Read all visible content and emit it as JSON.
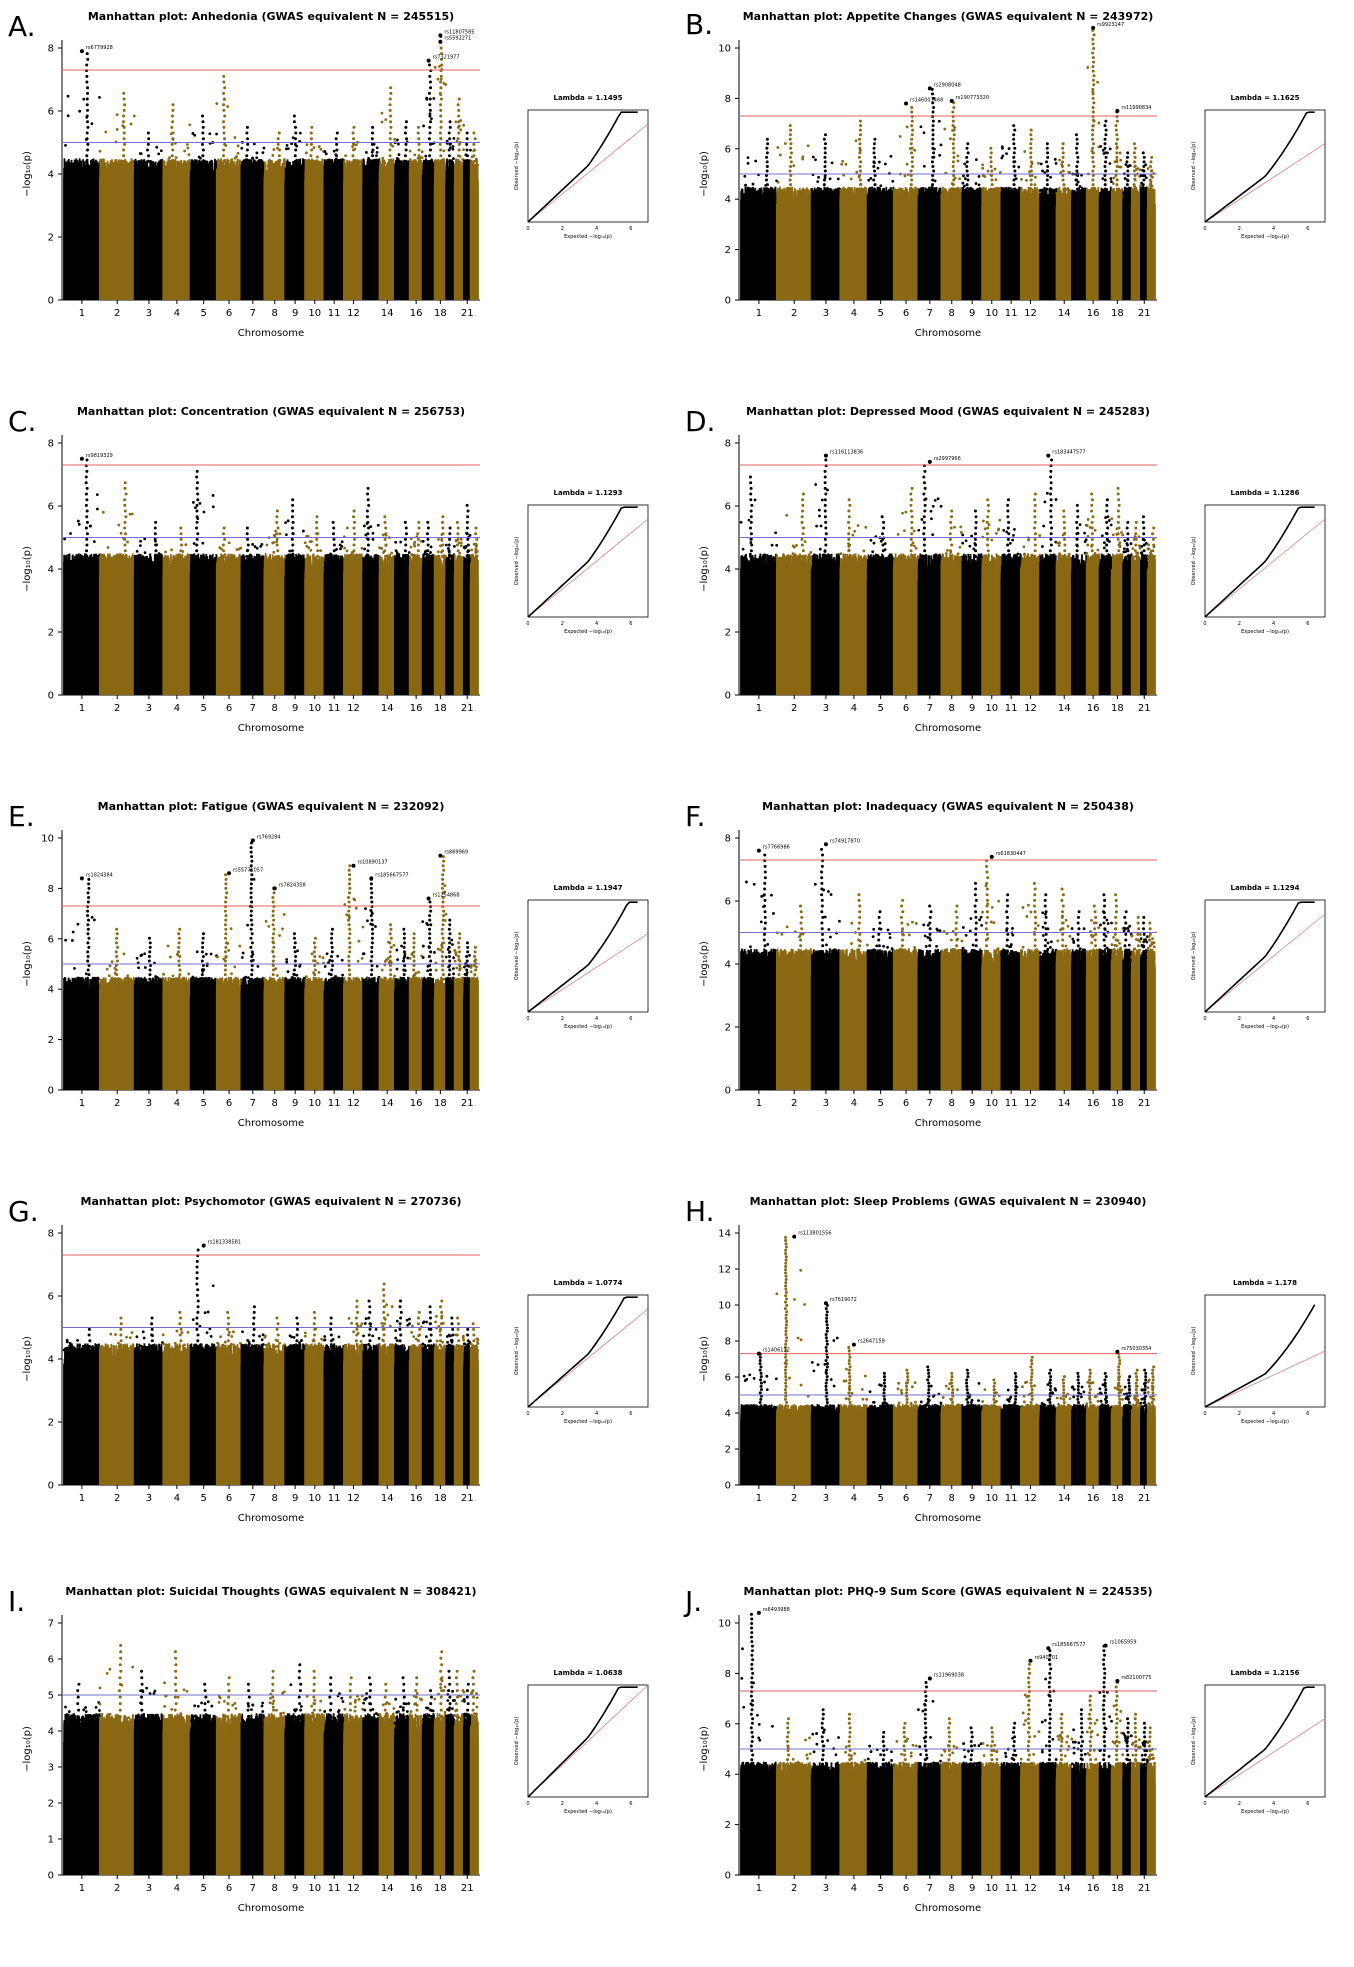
{
  "figure": {
    "panels": [
      {
        "letter": "A.",
        "title": "Manhattan plot: Anhedonia (GWAS equivalent N = 245515)",
        "lambda": "Lambda = 1.1495"
      },
      {
        "letter": "B.",
        "title": "Manhattan plot: Appetite Changes (GWAS equivalent N = 243972)",
        "lambda": "Lambda = 1.1625"
      },
      {
        "letter": "C.",
        "title": "Manhattan plot: Concentration (GWAS equivalent N = 256753)",
        "lambda": "Lambda = 1.1293"
      },
      {
        "letter": "D.",
        "title": "Manhattan plot: Depressed Mood (GWAS equivalent N = 245283)",
        "lambda": "Lambda = 1.1286"
      },
      {
        "letter": "E.",
        "title": "Manhattan plot: Fatigue (GWAS equivalent N = 232092)",
        "lambda": "Lambda = 1.1947"
      },
      {
        "letter": "F.",
        "title": "Manhattan plot: Inadequacy (GWAS equivalent N = 250438)",
        "lambda": "Lambda = 1.1294"
      },
      {
        "letter": "G.",
        "title": "Manhattan plot: Psychomotor (GWAS equivalent N = 270736)",
        "lambda": "Lambda = 1.0774"
      },
      {
        "letter": "H.",
        "title": "Manhattan plot: Sleep Problems (GWAS equivalent N = 230940)",
        "lambda": "Lambda = 1.178"
      },
      {
        "letter": "I.",
        "title": "Manhattan plot: Suicidal Thoughts (GWAS equivalent N = 308421)",
        "lambda": "Lambda = 1.0638"
      },
      {
        "letter": "J.",
        "title": "Manhattan plot: PHQ-9 Sum Score (GWAS equivalent N = 224535)",
        "lambda": "Lambda = 1.2156"
      }
    ],
    "xlabel": "Chromosome",
    "ylabel": "−log₁₀(p)",
    "qq_xlabel": "Expected  −log₁₀(p)",
    "qq_ylabel": "Observed  −log₁₀(p)",
    "chromosome_ticks": [
      "1",
      "2",
      "3",
      "4",
      "5",
      "6",
      "7",
      "8",
      "9",
      "10",
      "11",
      "12",
      "14",
      "16",
      "18",
      "21"
    ],
    "colors": {
      "odd": "#000000",
      "even": "#8B6914",
      "genomewide_line": "#e06060",
      "suggestive_line": "#7070cc",
      "null_line": "#e08080"
    }
  },
  "chart_data": [
    {
      "type": "scatter",
      "panel": "A",
      "ylim": [
        0,
        8
      ],
      "yticks": [
        0,
        2,
        4,
        6,
        8
      ],
      "genomewide": 7.3,
      "suggestive": 5,
      "chromosome_peaks": [
        7.9,
        6.6,
        5.4,
        6.3,
        5.9,
        7.2,
        5.6,
        5.4,
        5.9,
        5.5,
        5.3,
        5.6,
        5.5,
        6.9,
        5.8,
        5.5,
        7.6,
        8.4,
        5.7,
        6.5,
        5.3,
        5.3
      ],
      "annotations": [
        {
          "chr": 1,
          "y": 7.9,
          "label": "rs6779928"
        },
        {
          "chr": 18,
          "y": 8.4,
          "label": "rs11807585"
        },
        {
          "chr": 18,
          "y": 8.2,
          "label": "rs5592271"
        },
        {
          "chr": 17,
          "y": 7.6,
          "label": "rs7321977"
        }
      ],
      "qq": {
        "xmax": 7,
        "ymax": 8
      }
    },
    {
      "type": "scatter",
      "panel": "B",
      "ylim": [
        0,
        10
      ],
      "yticks": [
        0,
        2,
        4,
        6,
        8,
        10
      ],
      "genomewide": 7.3,
      "suggestive": 5,
      "chromosome_peaks": [
        6.4,
        7.0,
        6.6,
        7.2,
        6.5,
        7.8,
        8.4,
        7.9,
        6.3,
        6.1,
        7.0,
        6.8,
        6.3,
        6.2,
        6.7,
        10.8,
        7.1,
        7.5,
        6.0,
        6.2,
        6.0,
        5.8
      ],
      "annotations": [
        {
          "chr": 6,
          "y": 7.8,
          "label": "rs146007468"
        },
        {
          "chr": 7,
          "y": 8.4,
          "label": "rs2908048"
        },
        {
          "chr": 8,
          "y": 7.9,
          "label": "rs190773320"
        },
        {
          "chr": 16,
          "y": 10.8,
          "label": "rs9923147"
        },
        {
          "chr": 18,
          "y": 7.5,
          "label": "rs11990834"
        }
      ],
      "qq": {
        "xmax": 7,
        "ymax": 10
      }
    },
    {
      "type": "scatter",
      "panel": "C",
      "ylim": [
        0,
        8
      ],
      "yticks": [
        0,
        2,
        4,
        6,
        8
      ],
      "genomewide": 7.3,
      "suggestive": 5,
      "chromosome_peaks": [
        7.5,
        6.8,
        5.5,
        5.3,
        7.2,
        5.4,
        5.3,
        5.9,
        6.2,
        5.7,
        5.5,
        5.9,
        6.6,
        5.7,
        5.5,
        5.6,
        5.5,
        5.8,
        5.3,
        5.6,
        6.1,
        5.3
      ],
      "annotations": [
        {
          "chr": 1,
          "y": 7.5,
          "label": "rs9819329"
        }
      ],
      "qq": {
        "xmax": 7,
        "ymax": 8
      }
    },
    {
      "type": "scatter",
      "panel": "D",
      "ylim": [
        0,
        8
      ],
      "yticks": [
        0,
        2,
        4,
        6,
        8
      ],
      "genomewide": 7.3,
      "suggestive": 5,
      "chromosome_peaks": [
        7.0,
        6.4,
        7.6,
        6.2,
        5.7,
        6.6,
        7.4,
        6.0,
        5.9,
        6.2,
        6.2,
        6.5,
        7.6,
        6.0,
        6.1,
        6.5,
        6.3,
        6.6,
        5.6,
        5.6,
        5.7,
        5.3
      ],
      "annotations": [
        {
          "chr": 3,
          "y": 7.6,
          "label": "rs116113836"
        },
        {
          "chr": 7,
          "y": 7.4,
          "label": "rs2997966"
        },
        {
          "chr": 13,
          "y": 7.6,
          "label": "rs183447577"
        }
      ],
      "qq": {
        "xmax": 7,
        "ymax": 8
      }
    },
    {
      "type": "scatter",
      "panel": "E",
      "ylim": [
        0,
        10
      ],
      "yticks": [
        0,
        2,
        4,
        6,
        8,
        10
      ],
      "genomewide": 7.3,
      "suggestive": 5,
      "chromosome_peaks": [
        8.4,
        6.4,
        6.1,
        6.5,
        6.3,
        8.6,
        9.9,
        8.0,
        6.2,
        6.1,
        6.5,
        8.9,
        8.4,
        6.6,
        6.4,
        6.3,
        7.6,
        9.3,
        6.9,
        6.2,
        6.0,
        5.8
      ],
      "annotations": [
        {
          "chr": 1,
          "y": 8.4,
          "label": "rs1824384"
        },
        {
          "chr": 6,
          "y": 8.6,
          "label": "rs55771057"
        },
        {
          "chr": 7,
          "y": 9.9,
          "label": "rs769284"
        },
        {
          "chr": 8,
          "y": 8.0,
          "label": "rs7824358"
        },
        {
          "chr": 12,
          "y": 8.9,
          "label": "rs10890137"
        },
        {
          "chr": 13,
          "y": 8.4,
          "label": "rs185667577"
        },
        {
          "chr": 18,
          "y": 9.3,
          "label": "rs869969"
        },
        {
          "chr": 17,
          "y": 7.6,
          "label": "rs1254868"
        }
      ],
      "qq": {
        "xmax": 7,
        "ymax": 10
      }
    },
    {
      "type": "scatter",
      "panel": "F",
      "ylim": [
        0,
        8
      ],
      "yticks": [
        0,
        2,
        4,
        6,
        8
      ],
      "genomewide": 7.3,
      "suggestive": 5,
      "chromosome_peaks": [
        7.6,
        6.0,
        7.8,
        6.2,
        5.7,
        6.1,
        5.9,
        6.0,
        6.7,
        7.4,
        6.2,
        6.7,
        6.3,
        6.4,
        5.7,
        6.0,
        6.3,
        6.2,
        5.8,
        5.6,
        5.6,
        5.4
      ],
      "annotations": [
        {
          "chr": 1,
          "y": 7.6,
          "label": "rs7766986"
        },
        {
          "chr": 3,
          "y": 7.8,
          "label": "rs74917870"
        },
        {
          "chr": 10,
          "y": 7.4,
          "label": "rs61830447"
        }
      ],
      "qq": {
        "xmax": 7,
        "ymax": 8
      }
    },
    {
      "type": "scatter",
      "panel": "G",
      "ylim": [
        0,
        8
      ],
      "yticks": [
        0,
        2,
        4,
        6,
        8
      ],
      "genomewide": 7.3,
      "suggestive": 5,
      "chromosome_peaks": [
        5.1,
        5.4,
        5.4,
        5.5,
        7.6,
        5.5,
        5.7,
        5.3,
        5.3,
        5.5,
        5.4,
        6.0,
        5.9,
        6.4,
        5.9,
        5.6,
        5.8,
        6.0,
        5.3,
        5.4,
        5.0,
        5.2
      ],
      "annotations": [
        {
          "chr": 5,
          "y": 7.6,
          "label": "rs181338581"
        }
      ],
      "qq": {
        "xmax": 7,
        "ymax": 8
      }
    },
    {
      "type": "scatter",
      "panel": "H",
      "ylim": [
        0,
        14
      ],
      "yticks": [
        0,
        2,
        4,
        6,
        8,
        10,
        12,
        14
      ],
      "genomewide": 7.3,
      "suggestive": 5,
      "chromosome_peaks": [
        7.3,
        13.8,
        10.1,
        7.8,
        6.3,
        6.5,
        6.6,
        6.3,
        6.5,
        5.9,
        6.3,
        7.2,
        6.5,
        6.1,
        6.2,
        6.4,
        6.3,
        7.4,
        6.1,
        6.4,
        6.5,
        6.6
      ],
      "annotations": [
        {
          "chr": 1,
          "y": 7.3,
          "label": "rs1406122"
        },
        {
          "chr": 2,
          "y": 13.8,
          "label": "rs113801556"
        },
        {
          "chr": 3,
          "y": 10.1,
          "label": "rs7619072"
        },
        {
          "chr": 4,
          "y": 7.8,
          "label": "rs2647159"
        },
        {
          "chr": 18,
          "y": 7.4,
          "label": "rs75030354"
        }
      ],
      "qq": {
        "xmax": 7,
        "ymax": 14
      }
    },
    {
      "type": "scatter",
      "panel": "I",
      "ylim": [
        0,
        7
      ],
      "yticks": [
        0,
        1,
        2,
        3,
        4,
        5,
        6,
        7
      ],
      "genomewide": 7.3,
      "suggestive": 5,
      "chromosome_peaks": [
        5.4,
        6.5,
        5.8,
        6.2,
        5.4,
        5.6,
        5.4,
        5.7,
        5.9,
        5.7,
        5.6,
        5.6,
        5.6,
        5.3,
        5.5,
        5.6,
        5.2,
        6.3,
        5.8,
        5.7,
        5.4,
        5.7
      ],
      "annotations": [],
      "qq": {
        "xmax": 7,
        "ymax": 7
      }
    },
    {
      "type": "scatter",
      "panel": "J",
      "ylim": [
        0,
        10
      ],
      "yticks": [
        0,
        2,
        4,
        6,
        8,
        10
      ],
      "genomewide": 7.3,
      "suggestive": 5,
      "chromosome_peaks": [
        10.4,
        6.2,
        6.6,
        6.4,
        5.8,
        6.1,
        7.8,
        6.3,
        6.0,
        6.0,
        6.1,
        8.5,
        9.0,
        6.5,
        6.6,
        7.1,
        9.1,
        7.7,
        6.3,
        6.4,
        6.1,
        5.9
      ],
      "annotations": [
        {
          "chr": 1,
          "y": 10.4,
          "label": "rs6493988"
        },
        {
          "chr": 7,
          "y": 7.8,
          "label": "rs11969038"
        },
        {
          "chr": 12,
          "y": 8.5,
          "label": "rs940201"
        },
        {
          "chr": 13,
          "y": 9.0,
          "label": "rs185667577"
        },
        {
          "chr": 17,
          "y": 9.1,
          "label": "rs1065959"
        },
        {
          "chr": 18,
          "y": 7.7,
          "label": "rs82100775"
        }
      ],
      "qq": {
        "xmax": 7,
        "ymax": 10
      }
    }
  ]
}
